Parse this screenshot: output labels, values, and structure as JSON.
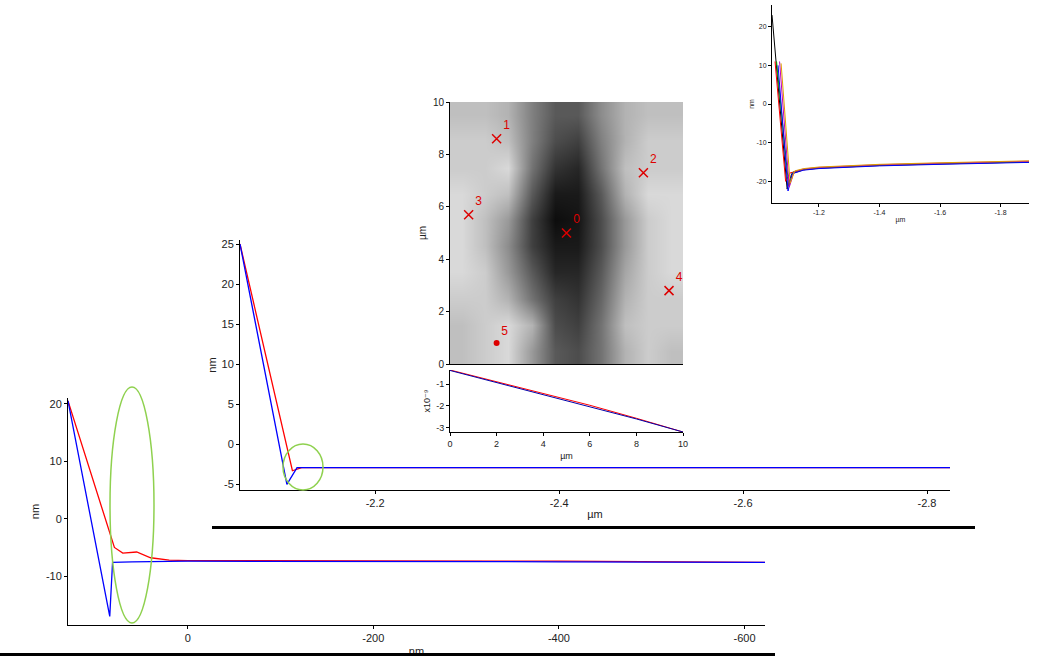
{
  "chart_data": [
    {
      "type": "line",
      "x_label": "nm",
      "y_label": "nm",
      "xlim": [
        129,
        -622
      ],
      "xticks": [
        0,
        -200,
        -400,
        -600
      ],
      "ylim": [
        -18.5,
        21
      ],
      "yticks": [
        20,
        10,
        0,
        -10
      ],
      "series": [
        {
          "color": "#ff0000",
          "x": [
            129,
            79,
            70,
            55,
            40,
            20,
            0,
            -200,
            -400,
            -622
          ],
          "values": [
            20.5,
            -5,
            -6,
            -5.8,
            -6.8,
            -7.2,
            -7.3,
            -7.3,
            -7.4,
            -7.6
          ]
        },
        {
          "color": "#0000ff",
          "x": [
            129,
            84,
            81,
            60,
            0,
            -200,
            -400,
            -622
          ],
          "values": [
            20.5,
            -17,
            -7.6,
            -7.5,
            -7.4,
            -7.4,
            -7.5,
            -7.6
          ]
        }
      ]
    },
    {
      "type": "line",
      "x_label": "µm",
      "y_label": "nm",
      "xlim": [
        -2.053,
        -2.825
      ],
      "xticks": [
        -2.2,
        -2.4,
        -2.6,
        -2.8
      ],
      "ylim": [
        -5.7,
        25.5
      ],
      "yticks": [
        25,
        20,
        15,
        10,
        5,
        0,
        -5
      ],
      "series": [
        {
          "color": "#ff0000",
          "x": [
            -2.053,
            -2.11,
            -2.12,
            -2.2,
            -2.4,
            -2.6,
            -2.825
          ],
          "values": [
            25,
            -3.3,
            -2.9,
            -2.9,
            -2.9,
            -2.9,
            -2.9
          ]
        },
        {
          "color": "#0000ff",
          "x": [
            -2.053,
            -2.104,
            -2.115,
            -2.2,
            -2.4,
            -2.6,
            -2.825
          ],
          "values": [
            25,
            -5,
            -2.9,
            -2.9,
            -2.9,
            -2.9,
            -2.9
          ]
        }
      ]
    },
    {
      "type": "heatmap",
      "y_label": "µm",
      "tick_labels": "y",
      "xlim": [
        0,
        10
      ],
      "ylim": [
        0,
        10
      ],
      "yticks": [
        0,
        2,
        4,
        6,
        8,
        10
      ],
      "x": [
        0.5,
        1.5,
        2.5,
        3.5,
        4.5,
        5.5,
        6.5,
        7.5,
        8.5,
        9.5
      ],
      "y": [
        0.5,
        1.5,
        2.5,
        3.5,
        4.5,
        5.5,
        6.5,
        7.5,
        8.5,
        9.5
      ],
      "zlim": [
        0,
        1
      ],
      "z": [
        [
          0.75,
          0.8,
          0.85,
          0.6,
          0.35,
          0.3,
          0.45,
          0.7,
          0.8,
          0.75
        ],
        [
          0.75,
          0.8,
          0.85,
          0.7,
          0.3,
          0.25,
          0.45,
          0.75,
          0.8,
          0.8
        ],
        [
          0.8,
          0.8,
          0.7,
          0.45,
          0.25,
          0.2,
          0.4,
          0.7,
          0.8,
          0.8
        ],
        [
          0.85,
          0.8,
          0.6,
          0.35,
          0.15,
          0.15,
          0.35,
          0.65,
          0.8,
          0.85
        ],
        [
          0.85,
          0.75,
          0.55,
          0.25,
          0.1,
          0.1,
          0.3,
          0.6,
          0.8,
          0.85
        ],
        [
          0.85,
          0.75,
          0.6,
          0.25,
          0.05,
          0.08,
          0.3,
          0.6,
          0.8,
          0.85
        ],
        [
          0.85,
          0.8,
          0.75,
          0.35,
          0.1,
          0.1,
          0.35,
          0.7,
          0.85,
          0.85
        ],
        [
          0.8,
          0.8,
          0.85,
          0.45,
          0.2,
          0.15,
          0.45,
          0.75,
          0.8,
          0.8
        ],
        [
          0.8,
          0.8,
          0.75,
          0.5,
          0.3,
          0.25,
          0.5,
          0.7,
          0.8,
          0.8
        ],
        [
          0.75,
          0.75,
          0.7,
          0.5,
          0.35,
          0.35,
          0.55,
          0.7,
          0.75,
          0.75
        ]
      ],
      "points": [
        {
          "label": "0",
          "x": 5,
          "y": 5,
          "marker": "x"
        },
        {
          "label": "1",
          "x": 2,
          "y": 8.6,
          "marker": "x"
        },
        {
          "label": "2",
          "x": 8.3,
          "y": 7.3,
          "marker": "x"
        },
        {
          "label": "3",
          "x": 0.8,
          "y": 5.7,
          "marker": "x"
        },
        {
          "label": "4",
          "x": 9.4,
          "y": 2.8,
          "marker": "x"
        },
        {
          "label": "5",
          "x": 2,
          "y": 0.8,
          "marker": "circle"
        }
      ]
    },
    {
      "type": "line",
      "x_label": "µm",
      "y_label": "x10⁻⁹",
      "xlim": [
        0,
        10
      ],
      "xticks": [
        0,
        2,
        4,
        6,
        8,
        10
      ],
      "ylim": [
        -3.2,
        -0.35
      ],
      "yticks": [
        -1,
        -2,
        -3
      ],
      "series": [
        {
          "color": "#ff0000",
          "x": [
            0,
            2,
            4,
            6,
            8,
            10
          ],
          "values": [
            -0.35,
            -0.88,
            -1.42,
            -1.97,
            -2.57,
            -3.2
          ]
        },
        {
          "color": "#0000aa",
          "x": [
            0,
            2,
            4,
            6,
            8,
            10
          ],
          "values": [
            -0.37,
            -0.92,
            -1.47,
            -2.02,
            -2.6,
            -3.2
          ]
        }
      ]
    },
    {
      "type": "line",
      "x_label": "µm",
      "y_label": "nm",
      "xlim": [
        -1.045,
        -1.894
      ],
      "xticks": [
        -1.2,
        -1.4,
        -1.6,
        -1.8
      ],
      "ylim": [
        -25.6,
        25.6
      ],
      "yticks": [
        20,
        10,
        0,
        -10,
        -20
      ],
      "series": [
        {
          "color": "#000000",
          "x": [
            -1.045,
            -1.095,
            -1.11,
            -1.15,
            -1.2,
            -1.3,
            -1.4,
            -1.6,
            -1.8,
            -1.894
          ],
          "values": [
            23,
            -22,
            -18,
            -17,
            -16.6,
            -16.2,
            -15.9,
            -15.5,
            -15.2,
            -15
          ]
        },
        {
          "color": "#ff0000",
          "x": [
            -1.055,
            -1.09,
            -1.105,
            -1.15,
            -1.2,
            -1.3,
            -1.4,
            -1.6,
            -1.8,
            -1.894
          ],
          "values": [
            11,
            -20,
            -17.8,
            -17,
            -16.5,
            -16.1,
            -15.8,
            -15.4,
            -15.1,
            -14.9
          ]
        },
        {
          "color": "#00a000",
          "x": [
            -1.06,
            -1.1,
            -1.115,
            -1.15,
            -1.2,
            -1.3,
            -1.4,
            -1.6,
            -1.8,
            -1.894
          ],
          "values": [
            11,
            -21,
            -17.6,
            -16.9,
            -16.5,
            -16.1,
            -15.8,
            -15.4,
            -15.1,
            -15
          ]
        },
        {
          "color": "#0000ff",
          "x": [
            -1.065,
            -1.098,
            -1.112,
            -1.15,
            -1.2,
            -1.3,
            -1.4,
            -1.6,
            -1.8,
            -1.894
          ],
          "values": [
            10,
            -22.5,
            -18,
            -17.1,
            -16.7,
            -16.3,
            -16,
            -15.6,
            -15.3,
            -15.1
          ]
        },
        {
          "color": "#c000c0",
          "x": [
            -1.07,
            -1.102,
            -1.118,
            -1.15,
            -1.2,
            -1.3,
            -1.4,
            -1.6,
            -1.8,
            -1.894
          ],
          "values": [
            11,
            -21.5,
            -17.5,
            -16.8,
            -16.4,
            -16,
            -15.7,
            -15.3,
            -15,
            -14.8
          ]
        },
        {
          "color": "#e0a000",
          "x": [
            -1.075,
            -1.105,
            -1.12,
            -1.15,
            -1.2,
            -1.3,
            -1.4,
            -1.6,
            -1.8,
            -1.894
          ],
          "values": [
            10.5,
            -20.5,
            -17.3,
            -16.7,
            -16.3,
            -15.9,
            -15.6,
            -15.2,
            -14.9,
            -14.7
          ]
        }
      ]
    }
  ]
}
